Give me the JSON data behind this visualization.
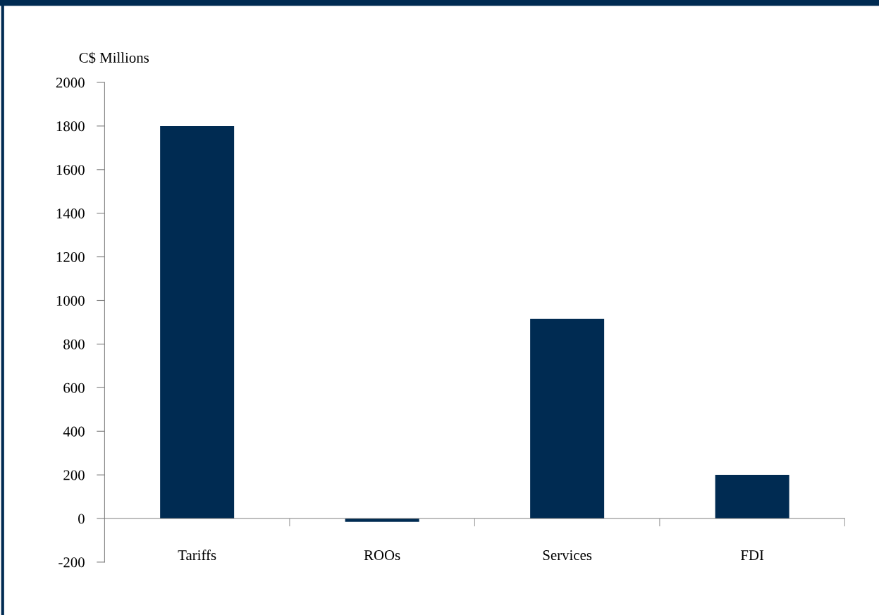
{
  "chart_data": {
    "type": "bar",
    "ylabel": "C$ Millions",
    "categories": [
      "Tariffs",
      "ROOs",
      "Services",
      "FDI"
    ],
    "values": [
      1800,
      -15,
      915,
      200
    ],
    "color": "#002b52",
    "ylim": [
      -200,
      2000
    ],
    "yticks": [
      -200,
      0,
      200,
      400,
      600,
      800,
      1000,
      1200,
      1400,
      1600,
      1800,
      2000
    ],
    "grid": false,
    "legend": false
  }
}
